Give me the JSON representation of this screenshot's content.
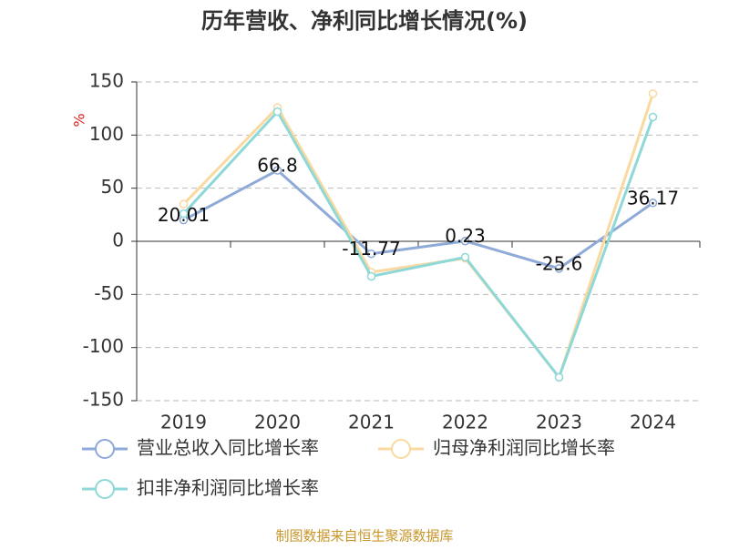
{
  "chart_data": {
    "type": "line",
    "title": "历年营收、净利同比增长情况(%)",
    "y_label": "%",
    "categories": [
      "2019",
      "2020",
      "2021",
      "2022",
      "2023",
      "2024"
    ],
    "series": [
      {
        "name": "营业总收入同比增长率",
        "color": "#8eaad8",
        "show_labels": true,
        "values": [
          20.01,
          66.8,
          -11.77,
          0.23,
          -25.6,
          36.17
        ]
      },
      {
        "name": "归母净利润同比增长率",
        "color": "#fad9a0",
        "show_labels": false,
        "values": [
          35,
          126,
          -29,
          -16,
          -128,
          139
        ]
      },
      {
        "name": "扣非净利润同比增长率",
        "color": "#8ed8d8",
        "show_labels": false,
        "values": [
          26,
          122,
          -33,
          -15,
          -128,
          117
        ]
      }
    ],
    "ylim": [
      -150,
      150
    ],
    "yticks": [
      -150,
      -100,
      -50,
      0,
      50,
      100,
      150
    ],
    "grid": true,
    "legend": "bottom",
    "source": "制图数据来自恒生聚源数据库"
  }
}
